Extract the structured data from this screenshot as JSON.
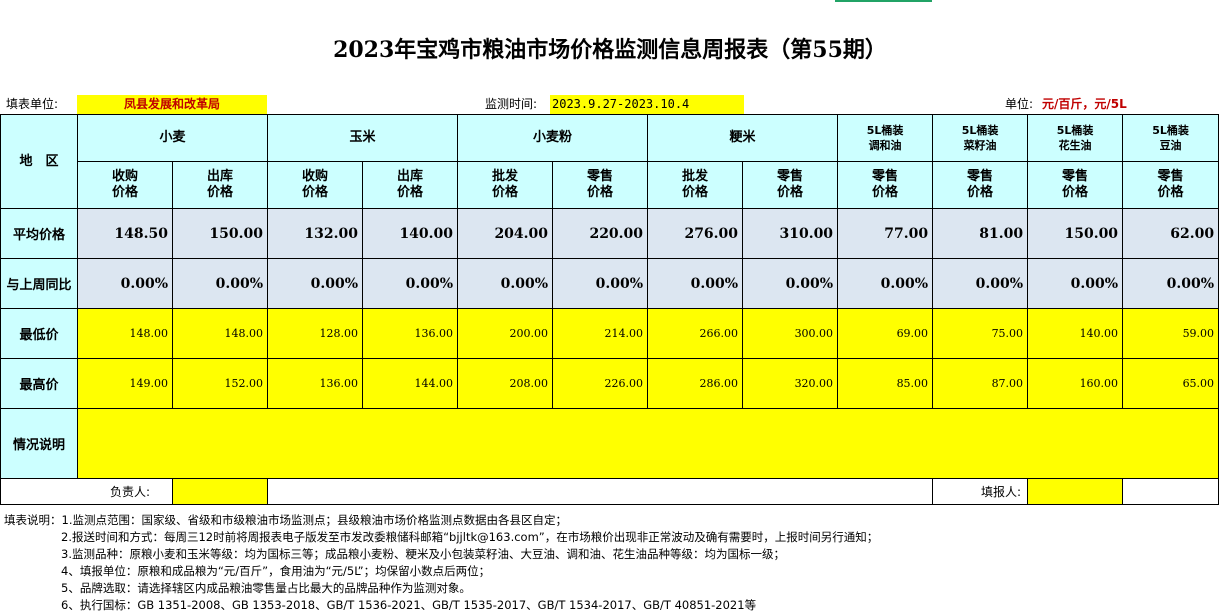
{
  "title": "2023年宝鸡市粮油市场价格监测信息周报表（第55期）",
  "meta": {
    "unit_label": "填表单位:",
    "unit_value": "凤县发展和改革局",
    "time_label": "监测时间:",
    "time_value": "2023.9.27-2023.10.4",
    "measure_label": "单位:",
    "measure_value": "元/百斤，元/5L"
  },
  "header": {
    "region": "地　区",
    "groups": [
      "小麦",
      "玉米",
      "小麦粉",
      "粳米"
    ],
    "oil_groups": [
      {
        "line1": "5L桶装",
        "line2": "调和油"
      },
      {
        "line1": "5L桶装",
        "line2": "菜籽油"
      },
      {
        "line1": "5L桶装",
        "line2": "花生油"
      },
      {
        "line1": "5L桶装",
        "line2": "豆油"
      }
    ],
    "sub": [
      {
        "line1": "收购",
        "line2": "价格"
      },
      {
        "line1": "出库",
        "line2": "价格"
      },
      {
        "line1": "收购",
        "line2": "价格"
      },
      {
        "line1": "出库",
        "line2": "价格"
      },
      {
        "line1": "批发",
        "line2": "价格"
      },
      {
        "line1": "零售",
        "line2": "价格"
      },
      {
        "line1": "批发",
        "line2": "价格"
      },
      {
        "line1": "零售",
        "line2": "价格"
      },
      {
        "line1": "零售",
        "line2": "价格"
      },
      {
        "line1": "零售",
        "line2": "价格"
      },
      {
        "line1": "零售",
        "line2": "价格"
      },
      {
        "line1": "零售",
        "line2": "价格"
      }
    ]
  },
  "rows": {
    "avg_label": "平均价格",
    "avg": [
      "148.50",
      "150.00",
      "132.00",
      "140.00",
      "204.00",
      "220.00",
      "276.00",
      "310.00",
      "77.00",
      "81.00",
      "150.00",
      "62.00"
    ],
    "yoy_label": "与上周同比",
    "yoy": [
      "0.00%",
      "0.00%",
      "0.00%",
      "0.00%",
      "0.00%",
      "0.00%",
      "0.00%",
      "0.00%",
      "0.00%",
      "0.00%",
      "0.00%",
      "0.00%"
    ],
    "min_label": "最低价",
    "min": [
      "148.00",
      "148.00",
      "128.00",
      "136.00",
      "200.00",
      "214.00",
      "266.00",
      "300.00",
      "69.00",
      "75.00",
      "140.00",
      "59.00"
    ],
    "max_label": "最高价",
    "max": [
      "149.00",
      "152.00",
      "136.00",
      "144.00",
      "208.00",
      "226.00",
      "286.00",
      "320.00",
      "85.00",
      "87.00",
      "160.00",
      "65.00"
    ],
    "note_label": "情况说明"
  },
  "sign": {
    "responsible_label": "负责人:",
    "filler_label": "填报人:"
  },
  "notes": [
    "填表说明：1.监测点范围：国家级、省级和市级粮油市场监测点；县级粮油市场价格监测点数据由各县区自定；",
    "2.报送时间和方式：每周三12时前将周报表电子版发至市发改委粮储科邮箱“bjjltk@163.com”，在市场粮价出现非正常波动及确有需要时，上报时间另行通知；",
    "3.监测品种：原粮小麦和玉米等级：均为国标三等；成品粮小麦粉、粳米及小包装菜籽油、大豆油、调和油、花生油品种等级：均为国标一级；",
    "4、填报单位：原粮和成品粮为“元/百斤”，食用油为“元/5L”；均保留小数点后两位；",
    "5、品牌选取：请选择辖区内成品粮油零售量占比最大的品牌品种作为监测对象。",
    "6、执行国标：GB 1351-2008、GB 1353-2018、GB/T 1536-2021、GB/T 1535-2017、GB/T 1534-2017、GB/T 40851-2021等"
  ]
}
